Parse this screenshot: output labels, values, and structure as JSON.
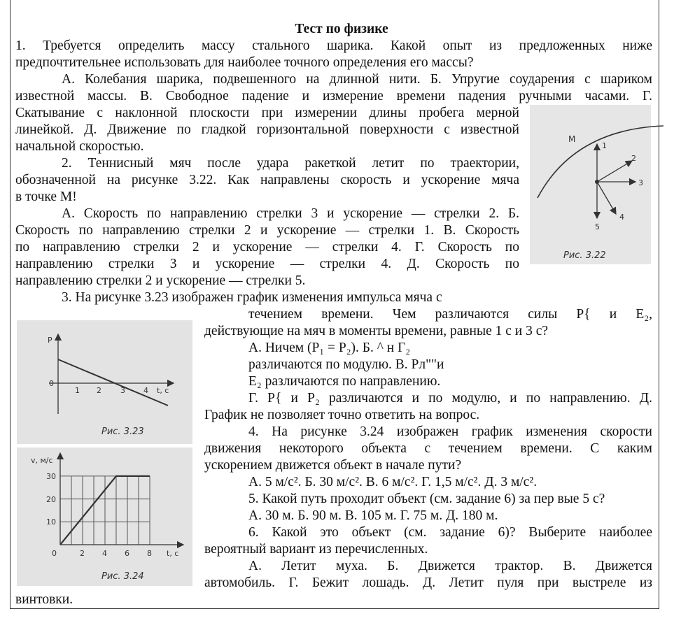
{
  "title": "Тест по физике",
  "lines": [
    "1. Требуется определить массу стального шарика. Какой опыт из предложенных ниже",
    "предпочтительнее использовать для наиболее точного определения его массы?",
    "А. Колебания шарика, подвешенного на длинной нити. Б. Упругие соударения с шариком",
    "известной массы. В. Свободное падение и измерение времени падения ручными часами. Г.",
    "Скатывание с наклонной плоскости при измерении длины пробега мерной",
    "линейкой. Д. Движение по гладкой горизонтальной поверхности с известной",
    "начальной скоростью.",
    "2. Теннисный мяч после удара ракеткой летит по траектории,",
    "обозначенной на рисунке 3.22. Как направлены скорость и ускорение мяча",
    "в точке М!",
    "А. Скорость по направлению стрелки 3 и ускорение — стрелки 2. Б.",
    "Скорость по направлению стрелки 2 и ускорение — стрелки 1. В. Скорость",
    "по направлению стрелки 2 и ускорение — стрелки 4. Г. Скорость по",
    "направлению стрелки 3 и ускорение — стрелки 4. Д. Скорость по",
    "направлению стрелки 2 и ускорение — стрелки 5.",
    "3. На рисунке 3.23 изображен график изменения импульса мяча с",
    "течением времени. Чем различаются силы P{ и E₂,",
    "действующие на мяч в моменты времени, равные 1 с и 3 с?",
    "А. Ничем (P₁ = P₂). Б. ^ н Г₂",
    "различаются по модулю. В. Pл\"\"и",
    "E₂ различаются по направлению.",
    "Г. P{ и P₂ различаются и по модулю, и по направлению. Д.",
    "График не позволяет точно ответить на вопрос.",
    "4. На рисунке 3.24 изображен график изменения скорости",
    "движения некоторого объекта с течением времени. С каким",
    "ускорением движется объект в начале пути?",
    "А. 5 м/с². Б. 30 м/с². В. 6 м/с². Г. 1,5 м/с². Д. 3 м/с².",
    "5. Какой путь проходит объект (см. задание 6) за пер вые 5 с?",
    "А. 30 м. Б. 90 м. В. 105 м. Г. 75 м. Д. 180 м.",
    "6. Какой это объект (см. задание 6)? Выберите наиболее",
    "вероятный вариант из перечисленных.",
    "А. Летит муха. Б. Движется трактор. В. Движется",
    "автомобиль. Г. Бежит лошадь. Д. Летит пуля при выстреле из",
    "винтовки."
  ],
  "fig322": {
    "caption": "Рис. 3.22",
    "point": "M",
    "arrows": [
      "1",
      "2",
      "3",
      "4",
      "5"
    ]
  },
  "fig323": {
    "caption": "Рис. 3.23",
    "ylabel": "P",
    "origin": "0",
    "xticks": [
      "1",
      "2",
      "3",
      "4"
    ],
    "xlabel": "t, c",
    "p_start": 1,
    "p_zero_at_t": 2
  },
  "fig324": {
    "caption": "Рис. 3.24",
    "ylabel": "v, м/с",
    "origin": "0",
    "yticks": [
      "10",
      "20",
      "30"
    ],
    "xticks": [
      "2",
      "4",
      "6",
      "8"
    ],
    "xlabel": "t, c",
    "chart_data": {
      "type": "line",
      "x": [
        0,
        5,
        8
      ],
      "y": [
        0,
        30,
        30
      ],
      "xlabel": "t, c",
      "ylabel": "v, м/с"
    }
  }
}
